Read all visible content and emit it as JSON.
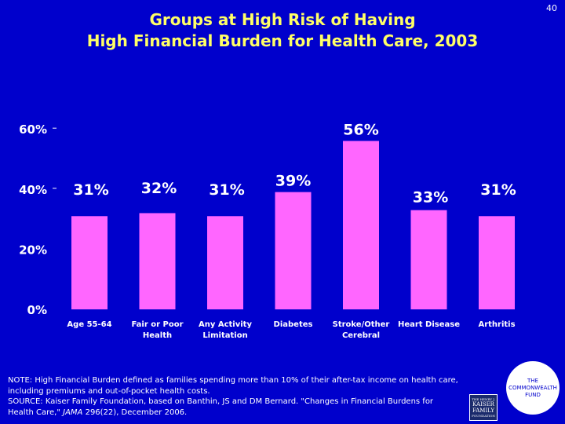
{
  "title_line1": "Groups at High Risk of Having",
  "title_line2": "High Financial Burden for Health Care, 2003",
  "page_number": "40",
  "colors": {
    "background": "#0000cc",
    "title": "#ffff66",
    "bar": "#ff66ff",
    "text": "#ffffff"
  },
  "chart_data": {
    "type": "bar",
    "title": "Groups at High Risk of Having High Financial Burden for Health Care, 2003",
    "categories": [
      [
        "Age 55-64"
      ],
      [
        "Fair or Poor",
        "Health"
      ],
      [
        "Any Activity",
        "Limitation"
      ],
      [
        "Diabetes"
      ],
      [
        "Stroke/Other",
        "Cerebral"
      ],
      [
        "Heart Disease"
      ],
      [
        "Arthritis"
      ]
    ],
    "values": [
      31,
      32,
      31,
      39,
      56,
      33,
      31
    ],
    "value_labels": [
      "31%",
      "32%",
      "31%",
      "39%",
      "56%",
      "33%",
      "31%"
    ],
    "y_ticks": [
      0,
      20,
      40,
      60
    ],
    "y_tick_labels": [
      "0%",
      "20%",
      "40%",
      "60%"
    ],
    "ylim": [
      0,
      60
    ],
    "grid": false,
    "legend": "none"
  },
  "note": {
    "line1": "NOTE: High Financial Burden defined as families spending more than 10% of their after-tax income on health care,",
    "line2": "including premiums and out-of-pocket health costs.",
    "line3": "SOURCE:  Kaiser Family Foundation, based on Banthin, JS  and DM Bernard. \"Changes in Financial Burdens for",
    "line4_prefix": "Health Care,\" ",
    "line4_journal": "JAMA",
    "line4_suffix": " 296(22), December 2006."
  },
  "logos": {
    "commonwealth": [
      "THE",
      "COMMONWEALTH",
      "FUND"
    ],
    "kaiser": [
      "THE HENRY J.",
      "KAISER",
      "FAMILY",
      "FOUNDATION"
    ]
  }
}
